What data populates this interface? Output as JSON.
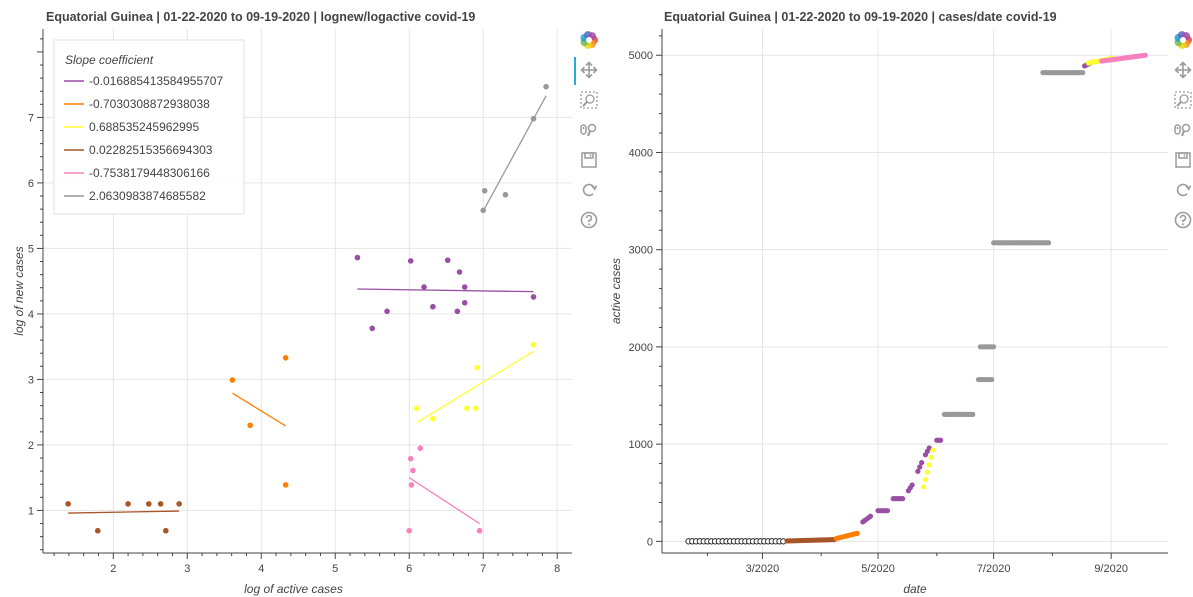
{
  "chart_data": [
    {
      "type": "scatter",
      "title": "Equatorial Guinea  |  01-22-2020 to 09-19-2020  |  lognew/logactive covid-19",
      "xlabel": "log of active cases",
      "ylabel": "log of new cases",
      "xlim": [
        1.05,
        8.2
      ],
      "ylim": [
        0.35,
        8.35
      ],
      "xticks": [
        2,
        3,
        4,
        5,
        6,
        7,
        8
      ],
      "yticks": [
        1,
        2,
        3,
        4,
        5,
        6,
        7
      ],
      "grid": true,
      "legend": {
        "title": "Slope coefficient",
        "placement": "top-left"
      },
      "series": [
        {
          "name": "-0.016885413584955707",
          "color": "#984ea3",
          "points": [
            [
              5.3,
              4.86
            ],
            [
              5.5,
              3.78
            ],
            [
              5.7,
              4.04
            ],
            [
              6.02,
              4.81
            ],
            [
              6.2,
              4.41
            ],
            [
              6.32,
              4.11
            ],
            [
              6.52,
              4.82
            ],
            [
              6.65,
              4.04
            ],
            [
              6.68,
              4.64
            ],
            [
              6.75,
              4.41
            ],
            [
              6.75,
              4.17
            ],
            [
              7.68,
              4.26
            ]
          ],
          "fit": [
            [
              5.3,
              4.38
            ],
            [
              7.68,
              4.34
            ]
          ]
        },
        {
          "name": "-0.7030308872938038",
          "color": "#ff7f00",
          "points": [
            [
              3.61,
              2.99
            ],
            [
              3.85,
              2.3
            ],
            [
              4.33,
              3.33
            ],
            [
              4.33,
              1.39
            ]
          ],
          "fit": [
            [
              3.61,
              2.79
            ],
            [
              4.33,
              2.29
            ]
          ]
        },
        {
          "name": "0.688535245962995",
          "color": "#ffff33",
          "points": [
            [
              6.1,
              2.56
            ],
            [
              6.32,
              2.4
            ],
            [
              6.78,
              2.56
            ],
            [
              6.9,
              2.56
            ],
            [
              6.92,
              3.18
            ],
            [
              7.68,
              3.53
            ]
          ],
          "fit": [
            [
              6.1,
              2.34
            ],
            [
              7.68,
              3.43
            ]
          ]
        },
        {
          "name": "0.02282515356694303",
          "color": "#a65628",
          "points": [
            [
              1.39,
              1.1
            ],
            [
              1.79,
              0.69
            ],
            [
              2.2,
              1.1
            ],
            [
              2.48,
              1.1
            ],
            [
              2.64,
              1.1
            ],
            [
              2.71,
              0.69
            ],
            [
              2.89,
              1.1
            ]
          ],
          "fit": [
            [
              1.39,
              0.96
            ],
            [
              2.89,
              0.99
            ]
          ]
        },
        {
          "name": "-0.7538179448306166",
          "color": "#f781bf",
          "points": [
            [
              6.0,
              0.69
            ],
            [
              6.02,
              1.79
            ],
            [
              6.03,
              1.39
            ],
            [
              6.05,
              1.61
            ],
            [
              6.15,
              1.95
            ],
            [
              6.95,
              0.69
            ]
          ],
          "fit": [
            [
              6.0,
              1.5
            ],
            [
              6.95,
              0.8
            ]
          ]
        },
        {
          "name": "2.0630983874685582",
          "color": "#999999",
          "points": [
            [
              7.0,
              5.58
            ],
            [
              7.02,
              5.88
            ],
            [
              7.3,
              5.82
            ],
            [
              7.68,
              6.98
            ],
            [
              7.85,
              7.47
            ]
          ],
          "fit": [
            [
              7.0,
              5.57
            ],
            [
              7.85,
              7.33
            ]
          ]
        }
      ]
    },
    {
      "type": "scatter",
      "title": "Equatorial Guinea  |  01-22-2020 to 09-19-2020  |  cases/date covid-19",
      "xlabel": "date",
      "ylabel": "active cases",
      "xlim": [
        "2020-01-08",
        "2020-10-01"
      ],
      "ylim": [
        -120,
        5270
      ],
      "xticks": [
        "2020-03-01",
        "2020-05-01",
        "2020-07-01",
        "2020-09-01"
      ],
      "xticklabels": [
        "3/2020",
        "5/2020",
        "7/2020",
        "9/2020"
      ],
      "yticks": [
        0,
        1000,
        2000,
        3000,
        4000,
        5000
      ],
      "grid": true,
      "segments": [
        {
          "color": "#222222",
          "hollow": true,
          "points": [
            [
              "2020-01-22",
              0
            ],
            [
              "2020-03-13",
              0
            ]
          ]
        },
        {
          "color": "#a65628",
          "points": [
            [
              "2020-03-14",
              4
            ],
            [
              "2020-04-08",
              18
            ]
          ]
        },
        {
          "color": "#ff7f00",
          "points": [
            [
              "2020-04-09",
              30
            ],
            [
              "2020-04-20",
              82
            ]
          ]
        },
        {
          "color": "#984ea3",
          "points": [
            [
              "2020-04-23",
              200
            ],
            [
              "2020-04-27",
              258
            ],
            [
              "2020-05-01",
              315
            ],
            [
              "2020-05-06",
              315
            ],
            [
              "2020-05-09",
              439
            ],
            [
              "2020-05-14",
              439
            ],
            [
              "2020-05-17",
              520
            ],
            [
              "2020-05-19",
              580
            ],
            [
              "2020-05-22",
              720
            ],
            [
              "2020-05-24",
              810
            ],
            [
              "2020-05-26",
              890
            ],
            [
              "2020-05-28",
              960
            ],
            [
              "2020-06-01",
              1040
            ],
            [
              "2020-06-03",
              1040
            ]
          ]
        },
        {
          "color": "#ffff33",
          "points": [
            [
              "2020-05-25",
              560
            ],
            [
              "2020-05-30",
              940
            ]
          ]
        },
        {
          "color": "#999999",
          "points": [
            [
              "2020-06-05",
              1306
            ],
            [
              "2020-06-20",
              1306
            ],
            [
              "2020-06-23",
              1664
            ],
            [
              "2020-06-30",
              1664
            ],
            [
              "2020-06-24",
              2001
            ],
            [
              "2020-07-01",
              2001
            ],
            [
              "2020-07-01",
              3071
            ],
            [
              "2020-07-30",
              3071
            ],
            [
              "2020-07-27",
              4821
            ],
            [
              "2020-08-17",
              4821
            ]
          ]
        },
        {
          "color": "#984ea3",
          "points": [
            [
              "2020-08-18",
              4890
            ],
            [
              "2020-08-22",
              4930
            ]
          ]
        },
        {
          "color": "#ffff33",
          "points": [
            [
              "2020-08-20",
              4920
            ],
            [
              "2020-09-02",
              4970
            ]
          ]
        },
        {
          "color": "#f781bf",
          "points": [
            [
              "2020-08-27",
              4940
            ],
            [
              "2020-09-19",
              5000
            ]
          ]
        }
      ]
    }
  ],
  "toolbar": {
    "icons": [
      "bokeh-logo-icon",
      "pan-icon",
      "box-zoom-icon",
      "wheel-zoom-icon",
      "save-icon",
      "reset-icon",
      "help-icon"
    ],
    "active_color": "#26aae1"
  }
}
